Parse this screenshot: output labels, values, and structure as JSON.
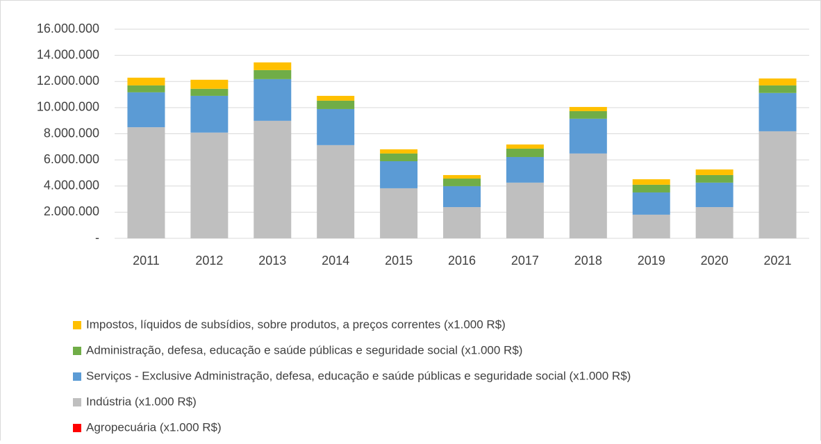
{
  "chart_data": {
    "type": "stacked_bar",
    "categories": [
      "2011",
      "2012",
      "2013",
      "2014",
      "2015",
      "2016",
      "2017",
      "2018",
      "2019",
      "2020",
      "2021"
    ],
    "series": [
      {
        "name": "Agropecuária (x1.000 R$)",
        "color": "#ff0000",
        "values": [
          0,
          0,
          0,
          0,
          0,
          0,
          0,
          0,
          0,
          0,
          0
        ]
      },
      {
        "name": "Indústria (x1.000 R$)",
        "color": "#bfbfbf",
        "values": [
          8500000,
          8090000,
          8990000,
          7130000,
          3830000,
          2390000,
          4260000,
          6490000,
          1810000,
          2390000,
          8190000
        ]
      },
      {
        "name": "Serviços - Exclusive Administração, defesa, educação e saúde públicas e seguridade social (x1.000 R$)",
        "color": "#5b9bd5",
        "values": [
          2670000,
          2810000,
          3190000,
          2760000,
          2070000,
          1600000,
          1960000,
          2660000,
          1700000,
          1870000,
          2930000
        ]
      },
      {
        "name": "Administração, defesa, educação e saúde públicas e seguridade social (x1.000 R$)",
        "color": "#70ad47",
        "values": [
          530000,
          540000,
          690000,
          640000,
          590000,
          580000,
          640000,
          580000,
          590000,
          580000,
          580000
        ]
      },
      {
        "name": "Impostos, líquidos de subsídios, sobre produtos, a preços correntes (x1.000 R$)",
        "color": "#ffc000",
        "values": [
          590000,
          690000,
          590000,
          370000,
          320000,
          270000,
          320000,
          320000,
          420000,
          430000,
          530000
        ]
      }
    ],
    "ylim": [
      0,
      16000000
    ],
    "yticks": [
      {
        "value": 0,
        "label": "-"
      },
      {
        "value": 2000000,
        "label": "2.000.000"
      },
      {
        "value": 4000000,
        "label": "4.000.000"
      },
      {
        "value": 6000000,
        "label": "6.000.000"
      },
      {
        "value": 8000000,
        "label": "8.000.000"
      },
      {
        "value": 10000000,
        "label": "10.000.000"
      },
      {
        "value": 12000000,
        "label": "12.000.000"
      },
      {
        "value": 14000000,
        "label": "14.000.000"
      },
      {
        "value": 16000000,
        "label": "16.000.000"
      }
    ],
    "grid": true,
    "legend": "bottom"
  }
}
